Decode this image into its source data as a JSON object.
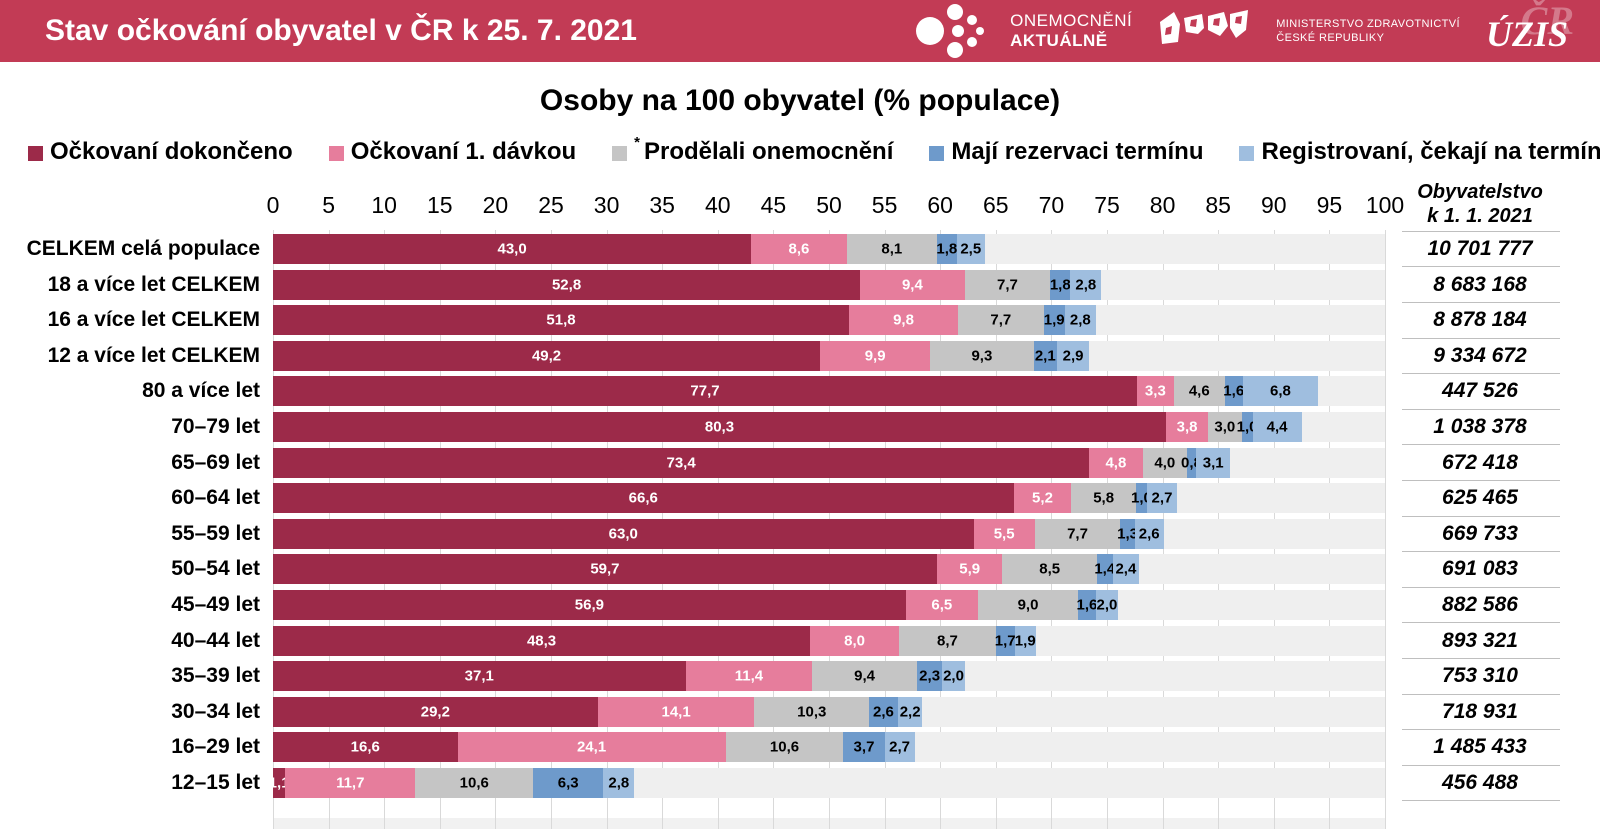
{
  "header": {
    "title": "Stav očkování obyvatel v ČR k 25. 7. 2021",
    "logo_onemocneni": {
      "line1": "ONEMOCNĚNÍ",
      "line2": "AKTUÁLNĚ"
    },
    "logo_ministry": {
      "line1": "MINISTERSTVO ZDRAVOTNICTVÍ",
      "line2": "ČESKÉ REPUBLIKY"
    },
    "logo_uzis": {
      "main": "ÚZIS",
      "back": "ČR"
    }
  },
  "chart_title": "Osoby na 100 obyvatel (% populace)",
  "population_header": {
    "line1": "Obyvatelstvo",
    "line2": "k 1. 1. 2021"
  },
  "colors": {
    "header_bg": "#C23B55",
    "remainder": "#EFEFEF",
    "gridline": "#D9D9D9",
    "divider": "#BFBFBF"
  },
  "chart_data": {
    "type": "bar",
    "stacked": true,
    "orientation": "horizontal",
    "title": "Osoby na 100 obyvatel (% populace)",
    "xlim": [
      0,
      100
    ],
    "x_ticks": [
      "0",
      "5",
      "10",
      "15",
      "20",
      "25",
      "30",
      "35",
      "40",
      "45",
      "50",
      "55",
      "60",
      "65",
      "70",
      "75",
      "80",
      "85",
      "90",
      "95",
      "100"
    ],
    "grid": true,
    "legend_position": "top",
    "series": [
      {
        "name": "Očkovaní dokončeno",
        "color": "#9C2A49",
        "label_color": "#FFFFFF",
        "asterisk": false
      },
      {
        "name": "Očkovaní 1. dávkou",
        "color": "#E67D9C",
        "label_color": "#FFFFFF",
        "asterisk": false
      },
      {
        "name": "Prodělali onemocnění",
        "color": "#C5C5C5",
        "label_color": "#000000",
        "asterisk": true
      },
      {
        "name": "Mají rezervaci termínu",
        "color": "#6E9ACB",
        "label_color": "#000000",
        "asterisk": false
      },
      {
        "name": "Registrovaní, čekají na termín",
        "color": "#9FBEDF",
        "label_color": "#000000",
        "asterisk": false
      }
    ],
    "extra_legend_swatch": {
      "label": "",
      "color": "#F0F0F0"
    },
    "rows": [
      {
        "label": "CELKEM celá populace",
        "values": [
          43.0,
          8.6,
          8.1,
          1.8,
          2.5
        ],
        "labels": [
          "43,0",
          "8,6",
          "8,1",
          "1,8",
          "2,5"
        ],
        "population": "10 701 777"
      },
      {
        "label": "18 a více let CELKEM",
        "values": [
          52.8,
          9.4,
          7.7,
          1.8,
          2.8
        ],
        "labels": [
          "52,8",
          "9,4",
          "7,7",
          "1,8",
          "2,8"
        ],
        "population": "8 683 168"
      },
      {
        "label": "16 a více let CELKEM",
        "values": [
          51.8,
          9.8,
          7.7,
          1.9,
          2.8
        ],
        "labels": [
          "51,8",
          "9,8",
          "7,7",
          "1,9",
          "2,8"
        ],
        "population": "8 878 184"
      },
      {
        "label": "12 a více let CELKEM",
        "values": [
          49.2,
          9.9,
          9.3,
          2.1,
          2.9
        ],
        "labels": [
          "49,2",
          "9,9",
          "9,3",
          "2,1",
          "2,9"
        ],
        "population": "9 334 672"
      },
      {
        "label": "80 a více let",
        "values": [
          77.7,
          3.3,
          4.6,
          1.6,
          6.8
        ],
        "labels": [
          "77,7",
          "3,3",
          "4,6",
          "1,6",
          "6,8"
        ],
        "population": "447 526"
      },
      {
        "label": "70–79 let",
        "values": [
          80.3,
          3.8,
          3.0,
          1.0,
          4.4
        ],
        "labels": [
          "80,3",
          "3,8",
          "3,0",
          "1,0",
          "4,4"
        ],
        "population": "1 038 378"
      },
      {
        "label": "65–69 let",
        "values": [
          73.4,
          4.8,
          4.0,
          0.8,
          3.1
        ],
        "labels": [
          "73,4",
          "4,8",
          "4,0",
          "0,8",
          "3,1"
        ],
        "population": "672 418"
      },
      {
        "label": "60–64 let",
        "values": [
          66.6,
          5.2,
          5.8,
          1.0,
          2.7
        ],
        "labels": [
          "66,6",
          "5,2",
          "5,8",
          "1,0",
          "2,7"
        ],
        "population": "625 465"
      },
      {
        "label": "55–59 let",
        "values": [
          63.0,
          5.5,
          7.7,
          1.3,
          2.6
        ],
        "labels": [
          "63,0",
          "5,5",
          "7,7",
          "1,3",
          "2,6"
        ],
        "population": "669 733"
      },
      {
        "label": "50–54 let",
        "values": [
          59.7,
          5.9,
          8.5,
          1.4,
          2.4
        ],
        "labels": [
          "59,7",
          "5,9",
          "8,5",
          "1,4",
          "2,4"
        ],
        "population": "691 083"
      },
      {
        "label": "45–49 let",
        "values": [
          56.9,
          6.5,
          9.0,
          1.6,
          2.0
        ],
        "labels": [
          "56,9",
          "6,5",
          "9,0",
          "1,6",
          "2,0"
        ],
        "population": "882 586"
      },
      {
        "label": "40–44 let",
        "values": [
          48.3,
          8.0,
          8.7,
          1.7,
          1.9
        ],
        "labels": [
          "48,3",
          "8,0",
          "8,7",
          "1,7",
          "1,9"
        ],
        "population": "893 321"
      },
      {
        "label": "35–39 let",
        "values": [
          37.1,
          11.4,
          9.4,
          2.3,
          2.0
        ],
        "labels": [
          "37,1",
          "11,4",
          "9,4",
          "2,3",
          "2,0"
        ],
        "population": "753 310"
      },
      {
        "label": "30–34 let",
        "values": [
          29.2,
          14.1,
          10.3,
          2.6,
          2.2
        ],
        "labels": [
          "29,2",
          "14,1",
          "10,3",
          "2,6",
          "2,2"
        ],
        "population": "718 931"
      },
      {
        "label": "16–29 let",
        "values": [
          16.6,
          24.1,
          10.6,
          3.7,
          2.7
        ],
        "labels": [
          "16,6",
          "24,1",
          "10,6",
          "3,7",
          "2,7"
        ],
        "population": "1 485 433"
      },
      {
        "label": "12–15 let",
        "values": [
          1.1,
          11.7,
          10.6,
          6.3,
          2.8
        ],
        "labels": [
          "1,1",
          "11,7",
          "10,6",
          "6,3",
          "2,8"
        ],
        "population": "456 488"
      }
    ]
  }
}
